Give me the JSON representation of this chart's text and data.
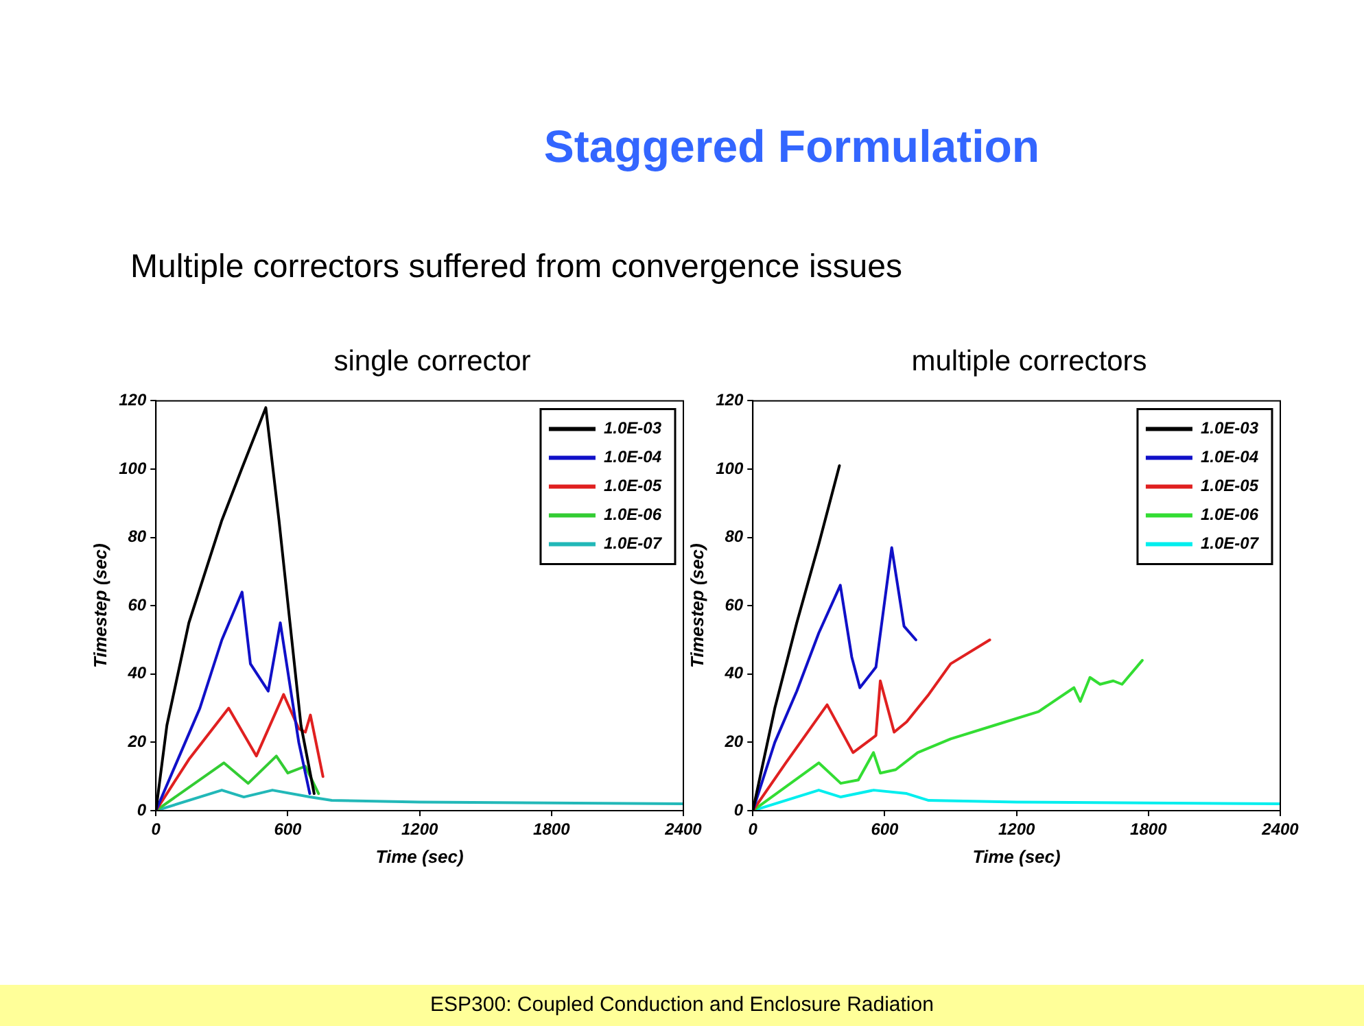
{
  "chart_data": [
    {
      "type": "line",
      "title": "single corrector",
      "xlabel": "Time (sec)",
      "ylabel": "Timestep (sec)",
      "annotations": [
        "Staggered Formulation",
        "Multiple correctors suffered from convergence issues",
        "ESP300: Coupled Conduction and Enclosure Radiation"
      ],
      "xlim": [
        0,
        2400
      ],
      "xticks": [
        0,
        600,
        1200,
        1800,
        2400
      ],
      "ylim": [
        0,
        120
      ],
      "yticks": [
        0,
        20,
        40,
        60,
        80,
        100,
        120
      ],
      "grid": false,
      "legend": "top right",
      "marker": "none",
      "line_style": "solid",
      "series": [
        {
          "name": "1.0E-03",
          "color": "#000000",
          "x": [
            0,
            50,
            150,
            300,
            390,
            500,
            560,
            610,
            660,
            720
          ],
          "values": [
            0,
            25,
            55,
            85,
            100,
            118,
            85,
            55,
            25,
            5
          ]
        },
        {
          "name": "1.0E-04",
          "color": "#1010c8",
          "x": [
            0,
            200,
            300,
            392,
            430,
            511,
            566,
            650,
            700
          ],
          "values": [
            0,
            30,
            50,
            64,
            43,
            35,
            55,
            20,
            5
          ]
        },
        {
          "name": "1.0E-05",
          "color": "#e02020",
          "x": [
            0,
            150,
            331,
            457,
            581,
            650,
            680,
            703,
            760
          ],
          "values": [
            0,
            15,
            30,
            16,
            34,
            24,
            23,
            28,
            10
          ]
        },
        {
          "name": "1.0E-06",
          "color": "#33cc33",
          "x": [
            0,
            309,
            420,
            548,
            600,
            680,
            740
          ],
          "values": [
            0,
            14,
            8,
            16,
            11,
            13,
            5
          ]
        },
        {
          "name": "1.0E-07",
          "color": "#22b8b8",
          "x": [
            0,
            300,
            400,
            530,
            700,
            800,
            1200,
            2400
          ],
          "values": [
            0,
            6,
            4,
            6,
            4,
            3,
            2.5,
            2
          ]
        }
      ]
    },
    {
      "type": "line",
      "title": "multiple correctors",
      "xlabel": "Time (sec)",
      "ylabel": "Timestep (sec)",
      "xlim": [
        0,
        2400
      ],
      "xticks": [
        0,
        600,
        1200,
        1800,
        2400
      ],
      "ylim": [
        0,
        120
      ],
      "yticks": [
        0,
        20,
        40,
        60,
        80,
        100,
        120
      ],
      "grid": false,
      "legend": "top right",
      "marker": "none",
      "line_style": "solid",
      "series": [
        {
          "name": "1.0E-03",
          "color": "#000000",
          "x": [
            0,
            100,
            200,
            300,
            394
          ],
          "values": [
            0,
            30,
            55,
            78,
            101
          ]
        },
        {
          "name": "1.0E-04",
          "color": "#1010c8",
          "x": [
            0,
            100,
            200,
            300,
            398,
            450,
            487,
            560,
            632,
            688,
            742
          ],
          "values": [
            0,
            20,
            35,
            52,
            66,
            45,
            36,
            42,
            77,
            54,
            50
          ]
        },
        {
          "name": "1.0E-05",
          "color": "#e02020",
          "x": [
            0,
            150,
            338,
            456,
            560,
            580,
            643,
            700,
            800,
            900,
            1078
          ],
          "values": [
            0,
            14,
            31,
            17,
            22,
            38,
            23,
            26,
            34,
            43,
            50
          ]
        },
        {
          "name": "1.0E-06",
          "color": "#33dd33",
          "x": [
            0,
            300,
            400,
            480,
            549,
            580,
            650,
            750,
            900,
            1100,
            1300,
            1461,
            1490,
            1534,
            1580,
            1640,
            1680,
            1772
          ],
          "values": [
            0,
            14,
            8,
            9,
            17,
            11,
            12,
            17,
            21,
            25,
            29,
            36,
            32,
            39,
            37,
            38,
            37,
            44
          ]
        },
        {
          "name": "1.0E-07",
          "color": "#00eeee",
          "x": [
            0,
            300,
            400,
            550,
            700,
            800,
            1200,
            2400
          ],
          "values": [
            0,
            6,
            4,
            6,
            5,
            3,
            2.5,
            2
          ]
        }
      ]
    }
  ]
}
